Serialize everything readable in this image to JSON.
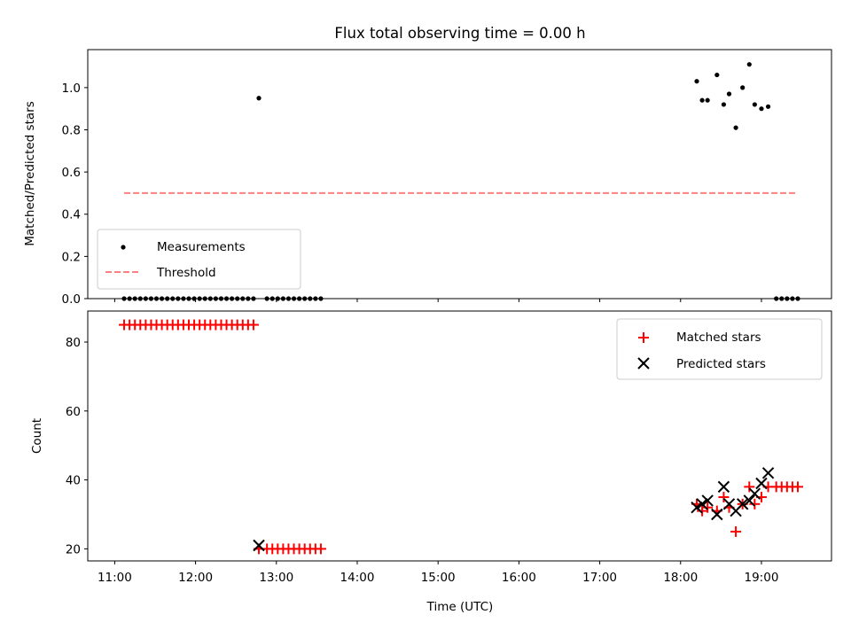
{
  "chart_data": [
    {
      "type": "scatter",
      "title": "Flux total observing time = 0.00 h",
      "xlabel": "",
      "ylabel": "Matched/Predicted stars",
      "xlim": [
        "10:40",
        "19:52"
      ],
      "ylim": [
        0,
        1.18
      ],
      "yticks": [
        0.0,
        0.2,
        0.4,
        0.6,
        0.8,
        1.0
      ],
      "ytick_labels": [
        "0.0",
        "0.2",
        "0.4",
        "0.6",
        "0.8",
        "1.0"
      ],
      "xticks": [
        "11:00",
        "12:00",
        "13:00",
        "14:00",
        "15:00",
        "16:00",
        "17:00",
        "18:00",
        "19:00"
      ],
      "show_x_tick_labels": false,
      "legend": {
        "position": "lower-left",
        "entries": [
          "Measurements",
          "Threshold"
        ]
      },
      "series": [
        {
          "name": "Measurements",
          "marker": "dot",
          "color": "#000000",
          "points": [
            [
              "11:07",
              0.0
            ],
            [
              "11:11",
              0.0
            ],
            [
              "11:15",
              0.0
            ],
            [
              "11:19",
              0.0
            ],
            [
              "11:23",
              0.0
            ],
            [
              "11:27",
              0.0
            ],
            [
              "11:31",
              0.0
            ],
            [
              "11:35",
              0.0
            ],
            [
              "11:39",
              0.0
            ],
            [
              "11:43",
              0.0
            ],
            [
              "11:47",
              0.0
            ],
            [
              "11:51",
              0.0
            ],
            [
              "11:55",
              0.0
            ],
            [
              "11:59",
              0.0
            ],
            [
              "12:03",
              0.0
            ],
            [
              "12:07",
              0.0
            ],
            [
              "12:11",
              0.0
            ],
            [
              "12:15",
              0.0
            ],
            [
              "12:19",
              0.0
            ],
            [
              "12:23",
              0.0
            ],
            [
              "12:27",
              0.0
            ],
            [
              "12:31",
              0.0
            ],
            [
              "12:35",
              0.0
            ],
            [
              "12:39",
              0.0
            ],
            [
              "12:43",
              0.0
            ],
            [
              "12:47",
              0.95
            ],
            [
              "12:53",
              0.0
            ],
            [
              "12:57",
              0.0
            ],
            [
              "13:01",
              0.0
            ],
            [
              "13:05",
              0.0
            ],
            [
              "13:09",
              0.0
            ],
            [
              "13:13",
              0.0
            ],
            [
              "13:17",
              0.0
            ],
            [
              "13:21",
              0.0
            ],
            [
              "13:25",
              0.0
            ],
            [
              "13:29",
              0.0
            ],
            [
              "13:33",
              0.0
            ],
            [
              "18:12",
              1.03
            ],
            [
              "18:16",
              0.94
            ],
            [
              "18:20",
              0.94
            ],
            [
              "18:27",
              1.06
            ],
            [
              "18:32",
              0.92
            ],
            [
              "18:36",
              0.97
            ],
            [
              "18:41",
              0.81
            ],
            [
              "18:46",
              1.0
            ],
            [
              "18:51",
              1.11
            ],
            [
              "18:55",
              0.92
            ],
            [
              "19:00",
              0.9
            ],
            [
              "19:05",
              0.91
            ],
            [
              "19:11",
              0.0
            ],
            [
              "19:15",
              0.0
            ],
            [
              "19:19",
              0.0
            ],
            [
              "19:23",
              0.0
            ],
            [
              "19:27",
              0.0
            ]
          ]
        },
        {
          "name": "Threshold",
          "line": "dashed",
          "color": "#ff8080",
          "points": [
            [
              "11:07",
              0.5
            ],
            [
              "19:27",
              0.5
            ]
          ]
        }
      ]
    },
    {
      "type": "scatter",
      "title": "",
      "xlabel": "Time (UTC)",
      "ylabel": "Count",
      "xlim": [
        "10:40",
        "19:52"
      ],
      "ylim": [
        16.5,
        89
      ],
      "yticks": [
        20,
        40,
        60,
        80
      ],
      "ytick_labels": [
        "20",
        "40",
        "60",
        "80"
      ],
      "xticks": [
        "11:00",
        "12:00",
        "13:00",
        "14:00",
        "15:00",
        "16:00",
        "17:00",
        "18:00",
        "19:00"
      ],
      "xtick_labels": [
        "11:00",
        "12:00",
        "13:00",
        "14:00",
        "15:00",
        "16:00",
        "17:00",
        "18:00",
        "19:00"
      ],
      "show_x_tick_labels": true,
      "legend": {
        "position": "upper-right",
        "entries": [
          "Matched stars",
          "Predicted stars"
        ]
      },
      "series": [
        {
          "name": "Matched stars",
          "marker": "plus",
          "color": "#ff0000",
          "points": [
            [
              "11:07",
              85
            ],
            [
              "11:11",
              85
            ],
            [
              "11:15",
              85
            ],
            [
              "11:19",
              85
            ],
            [
              "11:23",
              85
            ],
            [
              "11:27",
              85
            ],
            [
              "11:31",
              85
            ],
            [
              "11:35",
              85
            ],
            [
              "11:39",
              85
            ],
            [
              "11:43",
              85
            ],
            [
              "11:47",
              85
            ],
            [
              "11:51",
              85
            ],
            [
              "11:55",
              85
            ],
            [
              "11:59",
              85
            ],
            [
              "12:03",
              85
            ],
            [
              "12:07",
              85
            ],
            [
              "12:11",
              85
            ],
            [
              "12:15",
              85
            ],
            [
              "12:19",
              85
            ],
            [
              "12:23",
              85
            ],
            [
              "12:27",
              85
            ],
            [
              "12:31",
              85
            ],
            [
              "12:35",
              85
            ],
            [
              "12:39",
              85
            ],
            [
              "12:43",
              85
            ],
            [
              "12:47",
              20
            ],
            [
              "12:53",
              20
            ],
            [
              "12:57",
              20
            ],
            [
              "13:01",
              20
            ],
            [
              "13:05",
              20
            ],
            [
              "13:09",
              20
            ],
            [
              "13:13",
              20
            ],
            [
              "13:17",
              20
            ],
            [
              "13:21",
              20
            ],
            [
              "13:25",
              20
            ],
            [
              "13:29",
              20
            ],
            [
              "13:33",
              20
            ],
            [
              "18:12",
              33
            ],
            [
              "18:16",
              31
            ],
            [
              "18:20",
              32
            ],
            [
              "18:27",
              31
            ],
            [
              "18:32",
              35
            ],
            [
              "18:36",
              32
            ],
            [
              "18:41",
              25
            ],
            [
              "18:46",
              33
            ],
            [
              "18:51",
              38
            ],
            [
              "18:55",
              33
            ],
            [
              "19:00",
              35
            ],
            [
              "19:05",
              38
            ],
            [
              "19:11",
              38
            ],
            [
              "19:15",
              38
            ],
            [
              "19:19",
              38
            ],
            [
              "19:23",
              38
            ],
            [
              "19:27",
              38
            ]
          ]
        },
        {
          "name": "Predicted stars",
          "marker": "x",
          "color": "#000000",
          "points": [
            [
              "12:47",
              21
            ],
            [
              "18:12",
              32
            ],
            [
              "18:16",
              33
            ],
            [
              "18:20",
              34
            ],
            [
              "18:27",
              30
            ],
            [
              "18:32",
              38
            ],
            [
              "18:36",
              33
            ],
            [
              "18:41",
              31
            ],
            [
              "18:46",
              33
            ],
            [
              "18:51",
              34
            ],
            [
              "18:55",
              36
            ],
            [
              "19:00",
              39
            ],
            [
              "19:05",
              42
            ]
          ]
        }
      ]
    }
  ]
}
